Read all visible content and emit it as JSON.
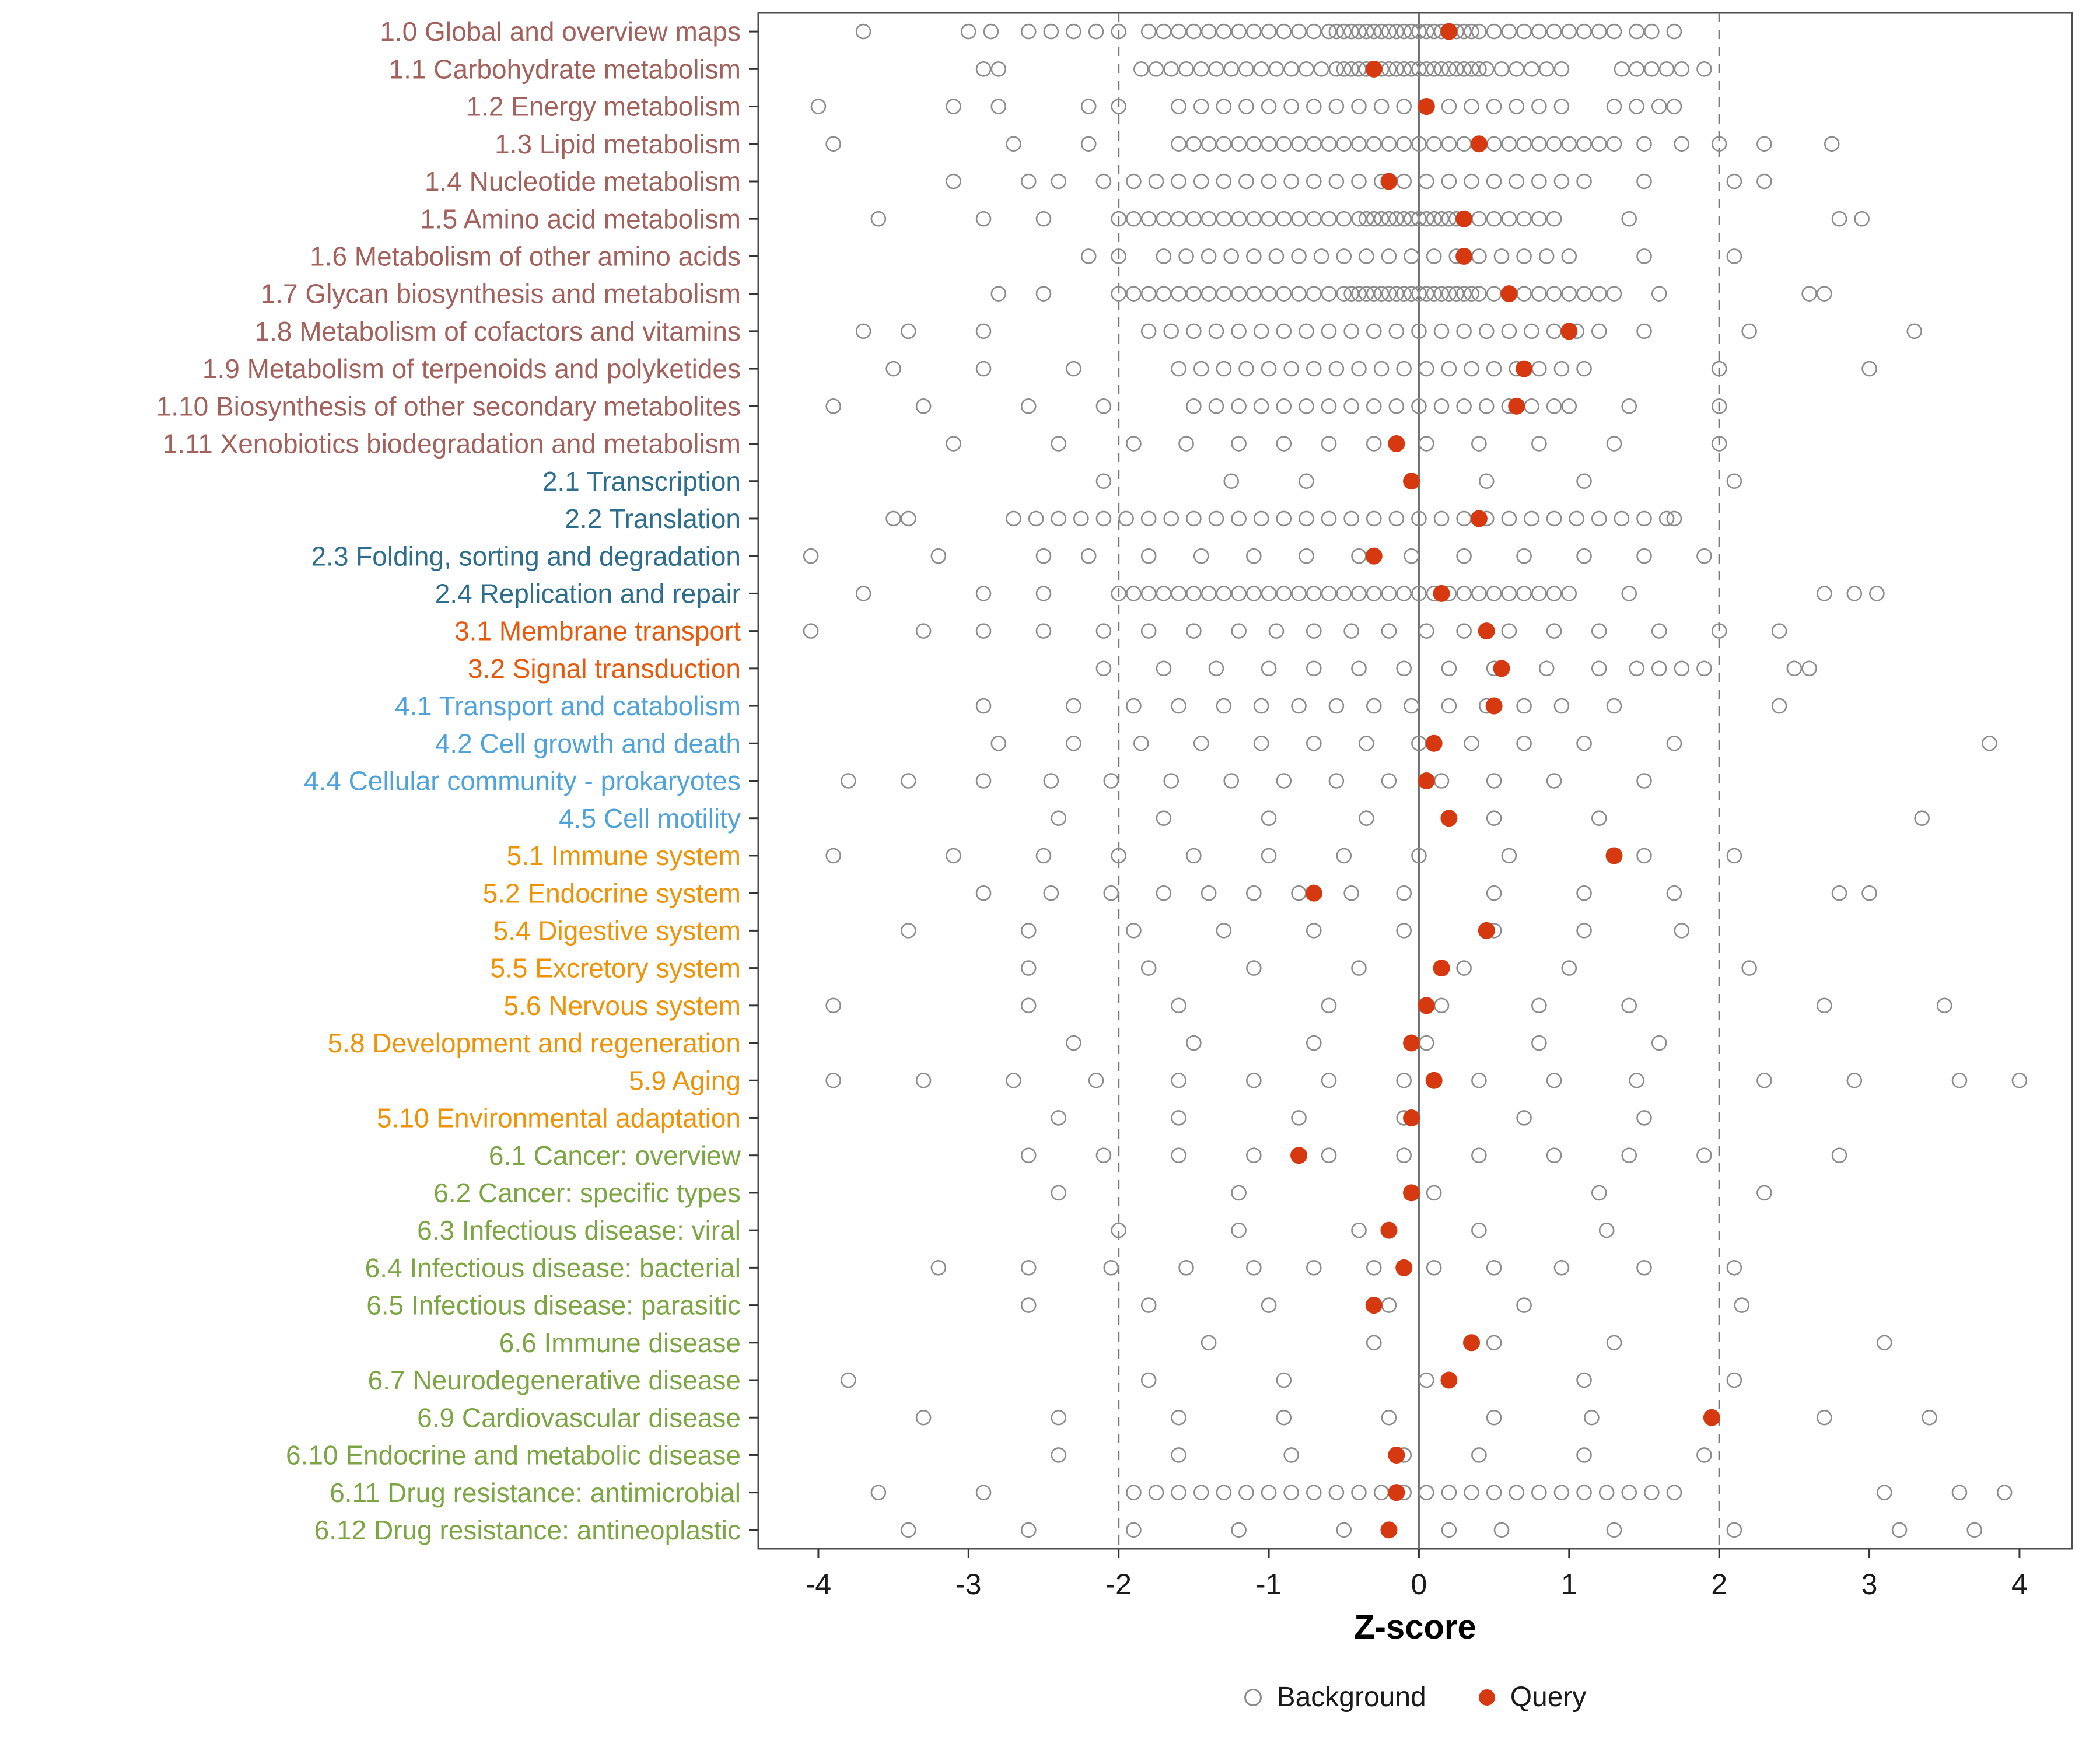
{
  "chart_data": {
    "type": "scatter",
    "title": "",
    "xlabel": "Z-score",
    "xlim": [
      -4.4,
      4.35
    ],
    "x_ticks": [
      -4,
      -3,
      -2,
      -1,
      0,
      1,
      2,
      3,
      4
    ],
    "reference_lines": {
      "solid": [
        0
      ],
      "dashed": [
        -2,
        2
      ]
    },
    "legend": {
      "background": "Background",
      "query": "Query"
    },
    "colors": {
      "query": "#D6390F",
      "background_stroke": "#8C8C8C",
      "panel_border": "#4d4d4d",
      "zero_line": "#6e6e6e",
      "dashed_line": "#7a7a7a",
      "axis_text": "#1a1a1a",
      "groups": {
        "1": "#A3615C",
        "2": "#2D6D8E",
        "3": "#E8590C",
        "4": "#4FA2DA",
        "5": "#F09205",
        "6": "#7CA643"
      }
    },
    "rows": [
      {
        "label": "1.0 Global and overview maps",
        "group": "1",
        "query": 0.2,
        "background": [
          -3.7,
          -3.0,
          -2.85,
          -2.6,
          -2.45,
          -2.3,
          -2.15,
          -2.0,
          1.45,
          1.55,
          1.7,
          -1.8,
          -1.7,
          -1.6,
          -1.5,
          -1.4,
          -1.3,
          -1.2,
          -1.1,
          -1.0,
          -0.9,
          -0.8,
          -0.7,
          -0.6,
          -0.5,
          -0.4,
          -0.3,
          -0.2,
          -0.1,
          0,
          0.1,
          0.2,
          0.3,
          0.4,
          0.5,
          0.6,
          0.7,
          0.8,
          0.9,
          1.0,
          1.1,
          1.2,
          1.3,
          -0.55,
          -0.45,
          -0.35,
          -0.25,
          -0.15,
          -0.05,
          0.05,
          0.15,
          0.25,
          0.35
        ]
      },
      {
        "label": "1.1 Carbohydrate metabolism",
        "group": "1",
        "query": -0.3,
        "background": [
          -2.9,
          -2.8,
          1.35,
          1.45,
          1.55,
          1.65,
          1.75,
          1.9,
          -1.85,
          -1.75,
          -1.65,
          -1.55,
          -1.45,
          -1.35,
          -1.25,
          -1.15,
          -1.05,
          -0.95,
          -0.85,
          -0.75,
          -0.65,
          -0.55,
          -0.45,
          -0.35,
          -0.25,
          -0.15,
          -0.05,
          0.05,
          0.15,
          0.25,
          0.35,
          0.45,
          0.55,
          0.65,
          0.75,
          0.85,
          0.95,
          -0.5,
          -0.4,
          -0.3,
          -0.2,
          -0.1,
          0,
          0.1,
          0.2,
          0.3,
          0.4
        ]
      },
      {
        "label": "1.2 Energy metabolism",
        "group": "1",
        "query": 0.05,
        "background": [
          -4.0,
          -3.1,
          -2.8,
          -2.2,
          -2.0,
          -1.6,
          -1.45,
          -1.3,
          -1.15,
          -1.0,
          -0.85,
          -0.7,
          -0.55,
          -0.4,
          -0.25,
          -0.1,
          0.05,
          0.2,
          0.35,
          0.5,
          0.65,
          0.8,
          0.95,
          1.3,
          1.45,
          1.6,
          1.7
        ]
      },
      {
        "label": "1.3 Lipid metabolism",
        "group": "1",
        "query": 0.4,
        "background": [
          -3.9,
          -2.7,
          -2.2,
          1.5,
          1.75,
          2.0,
          2.3,
          2.75,
          -1.6,
          -1.5,
          -1.4,
          -1.3,
          -1.2,
          -1.1,
          -1.0,
          -0.9,
          -0.8,
          -0.7,
          -0.6,
          -0.5,
          -0.4,
          -0.3,
          -0.2,
          -0.1,
          0,
          0.1,
          0.2,
          0.3,
          0.4,
          0.5,
          0.6,
          0.7,
          0.8,
          0.9,
          1.0,
          1.1,
          1.2,
          1.3
        ]
      },
      {
        "label": "1.4 Nucleotide metabolism",
        "group": "1",
        "query": -0.2,
        "background": [
          -3.1,
          -2.6,
          -2.4,
          -2.1,
          -1.9,
          -1.75,
          -1.6,
          -1.45,
          -1.3,
          -1.15,
          -1.0,
          -0.85,
          -0.7,
          -0.55,
          -0.4,
          -0.25,
          -0.1,
          0.05,
          0.2,
          0.35,
          0.5,
          0.65,
          0.8,
          0.95,
          1.1,
          1.5,
          2.1,
          2.3
        ]
      },
      {
        "label": "1.5 Amino acid metabolism",
        "group": "1",
        "query": 0.3,
        "background": [
          -3.6,
          -2.9,
          -2.5,
          1.4,
          2.8,
          2.95,
          -2.0,
          -1.9,
          -1.8,
          -1.7,
          -1.6,
          -1.5,
          -1.4,
          -1.3,
          -1.2,
          -1.1,
          -1.0,
          -0.9,
          -0.8,
          -0.7,
          -0.6,
          -0.5,
          -0.4,
          -0.3,
          -0.2,
          -0.1,
          0,
          0.1,
          0.2,
          0.3,
          0.4,
          0.5,
          0.6,
          0.7,
          0.8,
          0.9,
          -0.35,
          -0.25,
          -0.15,
          -0.05,
          0.05,
          0.15,
          0.25
        ]
      },
      {
        "label": "1.6 Metabolism of other amino acids",
        "group": "1",
        "query": 0.3,
        "background": [
          -2.2,
          -2.0,
          -1.7,
          -1.55,
          -1.4,
          -1.25,
          -1.1,
          -0.95,
          -0.8,
          -0.65,
          -0.5,
          -0.35,
          -0.2,
          -0.05,
          0.1,
          0.25,
          0.4,
          0.55,
          0.7,
          0.85,
          1.0,
          1.5,
          2.1
        ]
      },
      {
        "label": "1.7 Glycan biosynthesis and metabolism",
        "group": "1",
        "query": 0.6,
        "background": [
          -2.8,
          -2.5,
          1.6,
          2.6,
          2.7,
          -2.0,
          -1.9,
          -1.8,
          -1.7,
          -1.6,
          -1.5,
          -1.4,
          -1.3,
          -1.2,
          -1.1,
          -1.0,
          -0.9,
          -0.8,
          -0.7,
          -0.6,
          -0.5,
          -0.4,
          -0.3,
          -0.2,
          -0.1,
          0,
          0.1,
          0.2,
          0.3,
          0.4,
          0.5,
          0.6,
          0.7,
          0.8,
          0.9,
          1.0,
          1.1,
          1.2,
          1.3,
          -0.45,
          -0.35,
          -0.25,
          -0.15,
          -0.05,
          0.05,
          0.15,
          0.25,
          0.35
        ]
      },
      {
        "label": "1.8 Metabolism of cofactors and vitamins",
        "group": "1",
        "query": 1.0,
        "background": [
          -3.7,
          -3.4,
          -2.9,
          -1.8,
          -1.65,
          -1.5,
          -1.35,
          -1.2,
          -1.05,
          -0.9,
          -0.75,
          -0.6,
          -0.45,
          -0.3,
          -0.15,
          0,
          0.15,
          0.3,
          0.45,
          0.6,
          0.75,
          0.9,
          1.05,
          1.2,
          1.5,
          2.2,
          3.3
        ]
      },
      {
        "label": "1.9 Metabolism of terpenoids and polyketides",
        "group": "1",
        "query": 0.7,
        "background": [
          -3.5,
          -2.9,
          -2.3,
          -1.6,
          -1.45,
          -1.3,
          -1.15,
          -1.0,
          -0.85,
          -0.7,
          -0.55,
          -0.4,
          -0.25,
          -0.1,
          0.05,
          0.2,
          0.35,
          0.5,
          0.65,
          0.8,
          0.95,
          1.1,
          2.0,
          3.0
        ]
      },
      {
        "label": "1.10 Biosynthesis of other secondary metabolites",
        "group": "1",
        "query": 0.65,
        "background": [
          -3.9,
          -3.3,
          -2.6,
          -2.1,
          -1.5,
          -1.35,
          -1.2,
          -1.05,
          -0.9,
          -0.75,
          -0.6,
          -0.45,
          -0.3,
          -0.15,
          0,
          0.15,
          0.3,
          0.45,
          0.6,
          0.75,
          0.9,
          1.0,
          1.4,
          2.0
        ]
      },
      {
        "label": "1.11 Xenobiotics biodegradation and metabolism",
        "group": "1",
        "query": -0.15,
        "background": [
          -3.1,
          -2.4,
          -1.9,
          -1.55,
          -1.2,
          -0.9,
          -0.6,
          -0.3,
          0.05,
          0.4,
          0.8,
          1.3,
          2.0
        ]
      },
      {
        "label": "2.1 Transcription",
        "group": "2",
        "query": -0.05,
        "background": [
          -2.1,
          -1.25,
          -0.75,
          0.45,
          1.1,
          2.1
        ]
      },
      {
        "label": "2.2 Translation",
        "group": "2",
        "query": 0.4,
        "background": [
          -3.5,
          -3.4,
          1.35,
          1.5,
          1.65,
          1.7,
          -2.7,
          -2.55,
          -2.4,
          -2.25,
          -2.1,
          -1.95,
          -1.8,
          -1.65,
          -1.5,
          -1.35,
          -1.2,
          -1.05,
          -0.9,
          -0.75,
          -0.6,
          -0.45,
          -0.3,
          -0.15,
          0,
          0.15,
          0.3,
          0.45,
          0.6,
          0.75,
          0.9,
          1.05,
          1.2
        ]
      },
      {
        "label": "2.3 Folding, sorting and degradation",
        "group": "2",
        "query": -0.3,
        "background": [
          -4.05,
          -3.2,
          -2.5,
          -2.2,
          -1.8,
          -1.45,
          -1.1,
          -0.75,
          -0.4,
          -0.05,
          0.3,
          0.7,
          1.1,
          1.5,
          1.9
        ]
      },
      {
        "label": "2.4 Replication and repair",
        "group": "2",
        "query": 0.15,
        "background": [
          -3.7,
          -2.9,
          -2.5,
          1.4,
          2.7,
          2.9,
          3.05,
          -2.0,
          -1.9,
          -1.8,
          -1.7,
          -1.6,
          -1.5,
          -1.4,
          -1.3,
          -1.2,
          -1.1,
          -1.0,
          -0.9,
          -0.8,
          -0.7,
          -0.6,
          -0.5,
          -0.4,
          -0.3,
          -0.2,
          -0.1,
          0,
          0.1,
          0.2,
          0.3,
          0.4,
          0.5,
          0.6,
          0.7,
          0.8,
          0.9,
          1.0
        ]
      },
      {
        "label": "3.1 Membrane transport",
        "group": "3",
        "query": 0.45,
        "background": [
          -4.05,
          -3.3,
          -2.9,
          -2.5,
          -2.1,
          -1.8,
          -1.5,
          -1.2,
          -0.95,
          -0.7,
          -0.45,
          -0.2,
          0.05,
          0.3,
          0.6,
          0.9,
          1.2,
          1.6,
          2.0,
          2.4
        ]
      },
      {
        "label": "3.2 Signal transduction",
        "group": "3",
        "query": 0.55,
        "background": [
          -2.1,
          -1.7,
          -1.35,
          -1.0,
          -0.7,
          -0.4,
          -0.1,
          0.2,
          0.5,
          0.85,
          1.2,
          1.45,
          1.6,
          1.75,
          1.9,
          2.5,
          2.6
        ]
      },
      {
        "label": "4.1 Transport and catabolism",
        "group": "4",
        "query": 0.5,
        "background": [
          -2.9,
          -2.3,
          -1.9,
          -1.6,
          -1.3,
          -1.05,
          -0.8,
          -0.55,
          -0.3,
          -0.05,
          0.2,
          0.45,
          0.7,
          0.95,
          1.3,
          2.4
        ]
      },
      {
        "label": "4.2 Cell growth and death",
        "group": "4",
        "query": 0.1,
        "background": [
          -2.8,
          -2.3,
          -1.85,
          -1.45,
          -1.05,
          -0.7,
          -0.35,
          0,
          0.35,
          0.7,
          1.1,
          1.7,
          3.8
        ]
      },
      {
        "label": "4.4 Cellular community - prokaryotes",
        "group": "4",
        "query": 0.05,
        "background": [
          -3.8,
          -3.4,
          -2.9,
          -2.45,
          -2.05,
          -1.65,
          -1.25,
          -0.9,
          -0.55,
          -0.2,
          0.15,
          0.5,
          0.9,
          1.5
        ]
      },
      {
        "label": "4.5 Cell motility",
        "group": "4",
        "query": 0.2,
        "background": [
          -2.4,
          -1.7,
          -1.0,
          -0.35,
          0.5,
          1.2,
          3.35
        ]
      },
      {
        "label": "5.1 Immune system",
        "group": "5",
        "query": 1.3,
        "background": [
          -3.9,
          -3.1,
          -2.5,
          -2.0,
          -1.5,
          -1.0,
          -0.5,
          0,
          0.6,
          1.5,
          2.1
        ]
      },
      {
        "label": "5.2 Endocrine system",
        "group": "5",
        "query": -0.7,
        "background": [
          -2.9,
          -2.45,
          -2.05,
          -1.7,
          -1.4,
          -1.1,
          -0.8,
          -0.45,
          -0.1,
          0.5,
          1.1,
          1.7,
          2.8,
          3.0
        ]
      },
      {
        "label": "5.4 Digestive system",
        "group": "5",
        "query": 0.45,
        "background": [
          -3.4,
          -2.6,
          -1.9,
          -1.3,
          -0.7,
          -0.1,
          0.5,
          1.1,
          1.75
        ]
      },
      {
        "label": "5.5 Excretory system",
        "group": "5",
        "query": 0.15,
        "background": [
          -2.6,
          -1.8,
          -1.1,
          -0.4,
          0.3,
          1.0,
          2.2
        ]
      },
      {
        "label": "5.6 Nervous system",
        "group": "5",
        "query": 0.05,
        "background": [
          -3.9,
          -2.6,
          -1.6,
          -0.6,
          0.15,
          0.8,
          1.4,
          2.7,
          3.5
        ]
      },
      {
        "label": "5.8 Development and regeneration",
        "group": "5",
        "query": -0.05,
        "background": [
          -2.3,
          -1.5,
          -0.7,
          0.05,
          0.8,
          1.6
        ]
      },
      {
        "label": "5.9 Aging",
        "group": "5",
        "query": 0.1,
        "background": [
          -3.9,
          -3.3,
          -2.7,
          -2.15,
          -1.6,
          -1.1,
          -0.6,
          -0.1,
          0.4,
          0.9,
          1.45,
          2.3,
          2.9,
          3.6,
          4.0
        ]
      },
      {
        "label": "5.10 Environmental adaptation",
        "group": "5",
        "query": -0.05,
        "background": [
          -2.4,
          -1.6,
          -0.8,
          -0.1,
          0.7,
          1.5
        ]
      },
      {
        "label": "6.1 Cancer: overview",
        "group": "6",
        "query": -0.8,
        "background": [
          -2.6,
          -2.1,
          -1.6,
          -1.1,
          -0.6,
          -0.1,
          0.4,
          0.9,
          1.4,
          1.9,
          2.8
        ]
      },
      {
        "label": "6.2 Cancer: specific types",
        "group": "6",
        "query": -0.05,
        "background": [
          -2.4,
          -1.2,
          0.1,
          1.2,
          2.3
        ]
      },
      {
        "label": "6.3 Infectious disease: viral",
        "group": "6",
        "query": -0.2,
        "background": [
          -2.0,
          -1.2,
          -0.4,
          0.4,
          1.25
        ]
      },
      {
        "label": "6.4 Infectious disease: bacterial",
        "group": "6",
        "query": -0.1,
        "background": [
          -3.2,
          -2.6,
          -2.05,
          -1.55,
          -1.1,
          -0.7,
          -0.3,
          0.1,
          0.5,
          0.95,
          1.5,
          2.1
        ]
      },
      {
        "label": "6.5 Infectious disease: parasitic",
        "group": "6",
        "query": -0.3,
        "background": [
          -2.6,
          -1.8,
          -1.0,
          -0.2,
          0.7,
          2.15
        ]
      },
      {
        "label": "6.6 Immune disease",
        "group": "6",
        "query": 0.35,
        "background": [
          -1.4,
          -0.3,
          0.5,
          1.3,
          3.1
        ]
      },
      {
        "label": "6.7 Neurodegenerative disease",
        "group": "6",
        "query": 0.2,
        "background": [
          -3.8,
          -1.8,
          -0.9,
          0.05,
          1.1,
          2.1
        ]
      },
      {
        "label": "6.9 Cardiovascular disease",
        "group": "6",
        "query": 1.95,
        "background": [
          -3.3,
          -2.4,
          -1.6,
          -0.9,
          -0.2,
          0.5,
          1.15,
          2.7,
          3.4
        ]
      },
      {
        "label": "6.10 Endocrine and metabolic disease",
        "group": "6",
        "query": -0.15,
        "background": [
          -2.4,
          -1.6,
          -0.85,
          -0.1,
          0.4,
          1.1,
          1.9
        ]
      },
      {
        "label": "6.11 Drug resistance: antimicrobial",
        "group": "6",
        "query": -0.15,
        "background": [
          -3.6,
          -2.9,
          3.1,
          3.6,
          3.9,
          -1.9,
          -1.75,
          -1.6,
          -1.45,
          -1.3,
          -1.15,
          -1.0,
          -0.85,
          -0.7,
          -0.55,
          -0.4,
          -0.25,
          -0.1,
          0.05,
          0.2,
          0.35,
          0.5,
          0.65,
          0.8,
          0.95,
          1.1,
          1.25,
          1.4,
          1.55,
          1.7
        ]
      },
      {
        "label": "6.12 Drug resistance: antineoplastic",
        "group": "6",
        "query": -0.2,
        "background": [
          -3.4,
          -2.6,
          -1.9,
          -1.2,
          -0.5,
          0.2,
          0.55,
          1.3,
          2.1,
          3.2,
          3.7
        ]
      }
    ]
  }
}
